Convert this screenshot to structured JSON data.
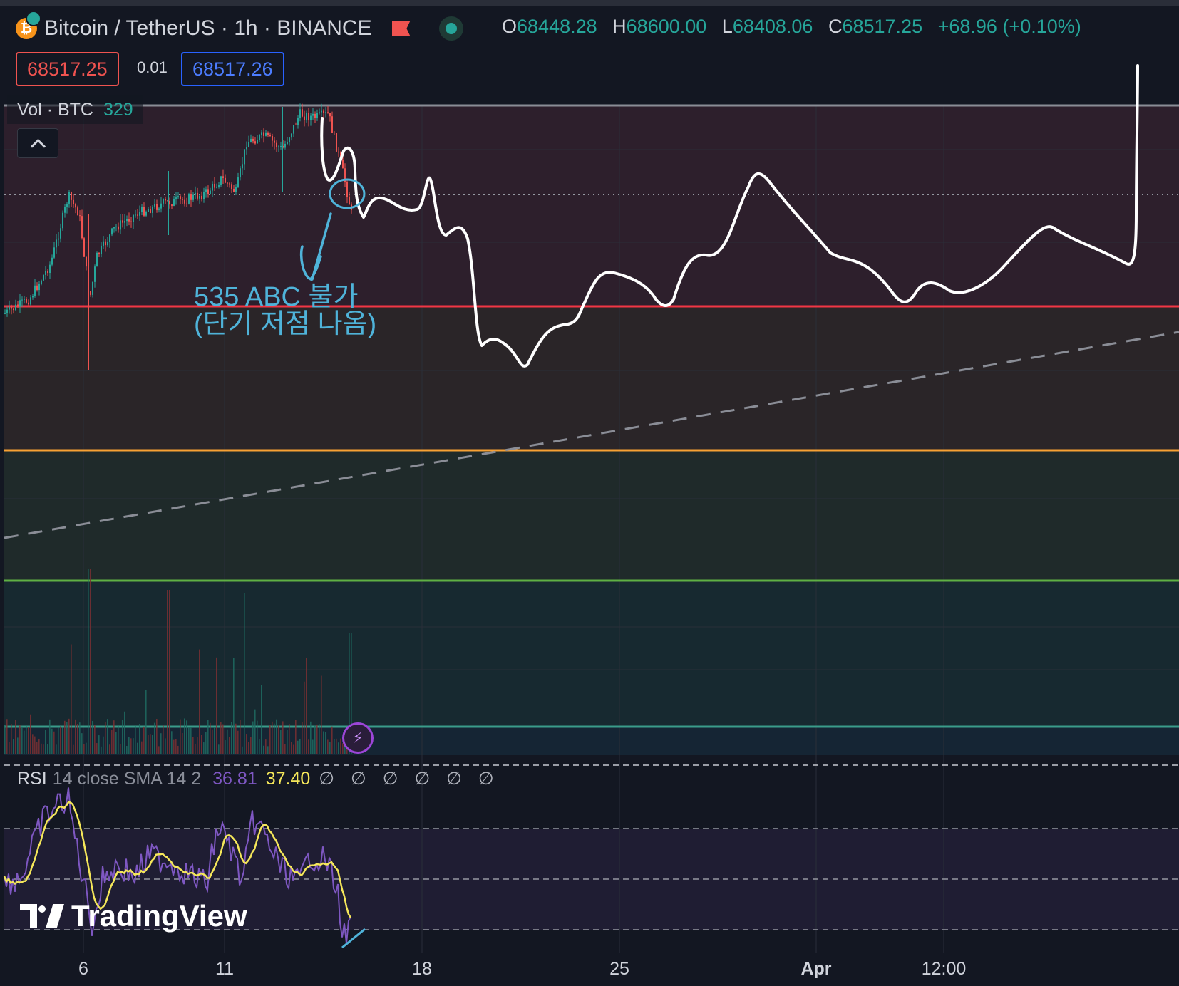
{
  "header": {
    "symbol_title": "Bitcoin / TetherUS · 1h · BINANCE",
    "coin_icon": "bitcoin-icon",
    "coin_glyph": "₿",
    "ohlc": {
      "open_label": "O",
      "open": "68448.28",
      "high_label": "H",
      "high": "68600.00",
      "low_label": "L",
      "low": "68408.06",
      "close_label": "C",
      "close": "68517.25",
      "change": "+68.96 (+0.10%)"
    }
  },
  "trade": {
    "sell_price": "68517.25",
    "spread": "0.01",
    "buy_price": "68517.26"
  },
  "volume_legend": {
    "label": "Vol · BTC",
    "value": "329"
  },
  "annotation": {
    "line1": "535 ABC 불가",
    "line2": "(단기 저점 나옴)"
  },
  "rsi_legend": {
    "label": "RSI",
    "params": "14 close SMA 14 2",
    "rsi_value": "36.81",
    "sma_value": "37.40",
    "na_values": "∅ ∅ ∅ ∅ ∅ ∅"
  },
  "logo": {
    "text": "TradingView"
  },
  "x_axis": {
    "labels": [
      "6",
      "11",
      "18",
      "25",
      "Apr",
      "12:00"
    ]
  },
  "colors": {
    "background": "#131722",
    "up": "#26a69a",
    "down": "#ef5350",
    "level_red": "#f23645",
    "level_orange": "#f7a134",
    "level_green": "#5fb044",
    "level_teal": "#3a9c8a",
    "rsi": "#7e57c2",
    "rsi_sma": "#f5e75a",
    "annotation": "#4fb3d9",
    "drawing": "#ffffff"
  },
  "chart_data": {
    "type": "candlestick",
    "symbol": "BTCUSDT",
    "interval": "1h",
    "last_close": 68517.25,
    "rsi": {
      "length": 14,
      "value": 36.81,
      "sma_value": 37.4
    }
  }
}
